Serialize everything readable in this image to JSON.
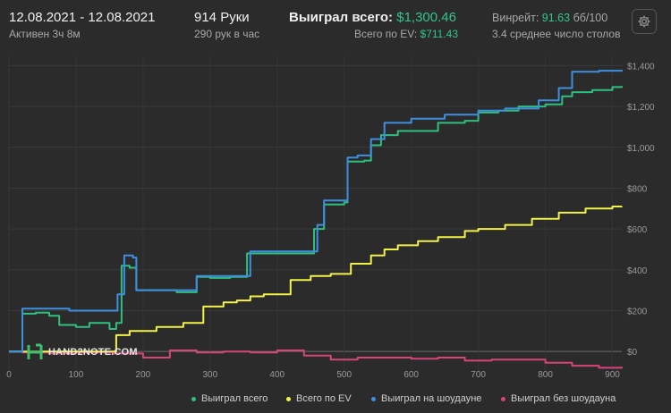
{
  "header": {
    "date_range": "12.08.2021 - 12.08.2021",
    "active_time": "Активен 3ч 8м",
    "hands": "914 Руки",
    "hands_per_hour": "290 рук в час",
    "won_total_label": "Выиграл всего:",
    "won_total_value": "$1,300.46",
    "ev_total_label": "Всего по EV:",
    "ev_total_value": "$711.43",
    "winrate_label": "Винрейт:",
    "winrate_value": "91.63",
    "winrate_unit": "бб/100",
    "avg_tables": "3.4 среднее число столов"
  },
  "logo_text": "HAND2NOTE.COM",
  "icons": {
    "settings": "gear-icon",
    "logo": "hand2note-logo-icon"
  },
  "colors": {
    "background": "#2b2b2b",
    "won_total": "#2fbf7f",
    "ev": "#f2f24a",
    "showdown": "#3f8fe0",
    "non_showdown": "#d6457a"
  },
  "chart_data": {
    "type": "line",
    "xlim": [
      0,
      914
    ],
    "ylim": [
      -100,
      1450
    ],
    "x_ticks": [
      "0",
      "100",
      "200",
      "300",
      "400",
      "500",
      "600",
      "700",
      "800",
      "900"
    ],
    "y_ticks": [
      "$1,400",
      "$1,200",
      "$1,000",
      "$800",
      "$600",
      "$400",
      "$200",
      "$0"
    ],
    "grid": true,
    "legend_position": "bottom",
    "series": [
      {
        "name": "Выиграл всего",
        "color": "#2fbf7f",
        "points": [
          [
            0,
            0
          ],
          [
            18,
            0
          ],
          [
            20,
            185
          ],
          [
            40,
            190
          ],
          [
            60,
            175
          ],
          [
            75,
            130
          ],
          [
            100,
            120
          ],
          [
            120,
            140
          ],
          [
            150,
            110
          ],
          [
            160,
            140
          ],
          [
            168,
            420
          ],
          [
            180,
            410
          ],
          [
            190,
            300
          ],
          [
            210,
            300
          ],
          [
            250,
            290
          ],
          [
            275,
            290
          ],
          [
            280,
            365
          ],
          [
            300,
            360
          ],
          [
            330,
            365
          ],
          [
            355,
            480
          ],
          [
            400,
            480
          ],
          [
            450,
            480
          ],
          [
            455,
            600
          ],
          [
            470,
            720
          ],
          [
            500,
            730
          ],
          [
            505,
            930
          ],
          [
            530,
            935
          ],
          [
            540,
            1010
          ],
          [
            555,
            1060
          ],
          [
            580,
            1080
          ],
          [
            600,
            1080
          ],
          [
            640,
            1120
          ],
          [
            680,
            1130
          ],
          [
            700,
            1170
          ],
          [
            730,
            1180
          ],
          [
            760,
            1200
          ],
          [
            800,
            1210
          ],
          [
            825,
            1250
          ],
          [
            840,
            1270
          ],
          [
            870,
            1280
          ],
          [
            900,
            1295
          ],
          [
            914,
            1300
          ]
        ]
      },
      {
        "name": "Всего по EV",
        "color": "#f2f24a",
        "points": [
          [
            0,
            0
          ],
          [
            155,
            0
          ],
          [
            160,
            80
          ],
          [
            180,
            100
          ],
          [
            220,
            120
          ],
          [
            260,
            140
          ],
          [
            290,
            220
          ],
          [
            320,
            240
          ],
          [
            340,
            250
          ],
          [
            360,
            270
          ],
          [
            380,
            280
          ],
          [
            420,
            350
          ],
          [
            450,
            370
          ],
          [
            480,
            380
          ],
          [
            510,
            430
          ],
          [
            540,
            470
          ],
          [
            560,
            500
          ],
          [
            580,
            520
          ],
          [
            610,
            540
          ],
          [
            640,
            560
          ],
          [
            680,
            590
          ],
          [
            700,
            600
          ],
          [
            740,
            620
          ],
          [
            780,
            650
          ],
          [
            820,
            680
          ],
          [
            860,
            700
          ],
          [
            900,
            710
          ],
          [
            914,
            711
          ]
        ]
      },
      {
        "name": "Выиграл на шоудауне",
        "color": "#3f8fe0",
        "points": [
          [
            0,
            0
          ],
          [
            18,
            0
          ],
          [
            20,
            210
          ],
          [
            80,
            210
          ],
          [
            90,
            200
          ],
          [
            155,
            200
          ],
          [
            162,
            280
          ],
          [
            172,
            470
          ],
          [
            185,
            460
          ],
          [
            190,
            300
          ],
          [
            275,
            300
          ],
          [
            280,
            370
          ],
          [
            340,
            370
          ],
          [
            360,
            490
          ],
          [
            450,
            490
          ],
          [
            460,
            620
          ],
          [
            470,
            740
          ],
          [
            500,
            740
          ],
          [
            505,
            950
          ],
          [
            520,
            960
          ],
          [
            540,
            1040
          ],
          [
            560,
            1120
          ],
          [
            600,
            1140
          ],
          [
            650,
            1160
          ],
          [
            700,
            1180
          ],
          [
            740,
            1190
          ],
          [
            790,
            1230
          ],
          [
            820,
            1290
          ],
          [
            840,
            1370
          ],
          [
            880,
            1375
          ],
          [
            914,
            1380
          ]
        ]
      },
      {
        "name": "Выиграл без шоудауна",
        "color": "#d6457a",
        "points": [
          [
            0,
            0
          ],
          [
            20,
            -5
          ],
          [
            60,
            -10
          ],
          [
            100,
            -5
          ],
          [
            155,
            -10
          ],
          [
            200,
            -30
          ],
          [
            240,
            5
          ],
          [
            280,
            -5
          ],
          [
            320,
            0
          ],
          [
            360,
            -5
          ],
          [
            400,
            5
          ],
          [
            440,
            -20
          ],
          [
            480,
            -40
          ],
          [
            520,
            -30
          ],
          [
            560,
            -30
          ],
          [
            600,
            -35
          ],
          [
            640,
            -30
          ],
          [
            680,
            -45
          ],
          [
            720,
            -40
          ],
          [
            760,
            -40
          ],
          [
            800,
            -55
          ],
          [
            840,
            -70
          ],
          [
            880,
            -80
          ],
          [
            914,
            -75
          ]
        ]
      }
    ]
  },
  "legend": {
    "items": [
      {
        "label": "Выиграл всего",
        "color": "#2fbf7f"
      },
      {
        "label": "Всего по EV",
        "color": "#f2f24a"
      },
      {
        "label": "Выиграл на шоудауне",
        "color": "#3f8fe0"
      },
      {
        "label": "Выиграл без шоудауна",
        "color": "#d6457a"
      }
    ]
  }
}
